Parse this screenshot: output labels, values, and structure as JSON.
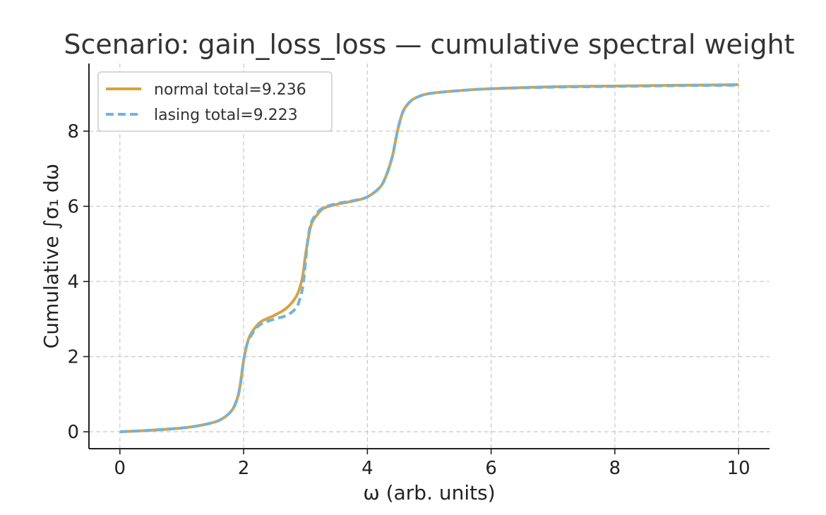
{
  "chart_data": {
    "type": "line",
    "title": "Scenario: gain_loss_loss — cumulative spectral weight",
    "xlabel": "ω (arb. units)",
    "ylabel": "Cumulative ∫σ₁ dω",
    "xlim": [
      -0.5,
      10.5
    ],
    "ylim": [
      -0.45,
      9.8
    ],
    "xticks": [
      0,
      2,
      4,
      6,
      8,
      10
    ],
    "yticks": [
      0,
      2,
      4,
      6,
      8
    ],
    "grid": true,
    "legend_position": "top-left",
    "series": [
      {
        "name": "normal total=9.236",
        "color": "#dba23a",
        "style": "solid",
        "x": [
          0,
          0.5,
          1.0,
          1.3,
          1.6,
          1.8,
          1.9,
          1.95,
          2.0,
          2.05,
          2.1,
          2.2,
          2.3,
          2.5,
          2.7,
          2.85,
          2.92,
          2.96,
          3.0,
          3.05,
          3.1,
          3.2,
          3.3,
          3.5,
          3.8,
          4.0,
          4.2,
          4.3,
          4.4,
          4.45,
          4.5,
          4.55,
          4.6,
          4.7,
          4.8,
          5.0,
          5.5,
          6.0,
          7.0,
          8.0,
          9.0,
          10.0
        ],
        "values": [
          0,
          0.04,
          0.1,
          0.17,
          0.3,
          0.55,
          0.9,
          1.3,
          1.9,
          2.3,
          2.55,
          2.8,
          2.95,
          3.1,
          3.3,
          3.6,
          3.9,
          4.2,
          4.7,
          5.2,
          5.55,
          5.8,
          5.95,
          6.05,
          6.15,
          6.25,
          6.5,
          6.8,
          7.3,
          7.7,
          8.1,
          8.4,
          8.6,
          8.8,
          8.9,
          9.0,
          9.08,
          9.13,
          9.18,
          9.2,
          9.22,
          9.236
        ]
      },
      {
        "name": "lasing total=9.223",
        "color": "#6fb4e0",
        "style": "dashed",
        "x": [
          0,
          0.5,
          1.0,
          1.3,
          1.6,
          1.8,
          1.9,
          1.95,
          2.0,
          2.05,
          2.1,
          2.2,
          2.3,
          2.5,
          2.7,
          2.85,
          2.92,
          2.96,
          3.0,
          3.03,
          3.06,
          3.1,
          3.2,
          3.3,
          3.5,
          3.8,
          4.0,
          4.2,
          4.3,
          4.4,
          4.45,
          4.5,
          4.55,
          4.6,
          4.7,
          4.8,
          5.0,
          5.5,
          6.0,
          7.0,
          8.0,
          9.0,
          10.0
        ],
        "values": [
          0,
          0.04,
          0.1,
          0.17,
          0.3,
          0.55,
          0.9,
          1.3,
          1.9,
          2.3,
          2.5,
          2.75,
          2.88,
          3.0,
          3.1,
          3.3,
          3.6,
          3.9,
          4.5,
          5.0,
          5.35,
          5.6,
          5.85,
          5.97,
          6.07,
          6.16,
          6.25,
          6.5,
          6.8,
          7.3,
          7.7,
          8.1,
          8.4,
          8.6,
          8.8,
          8.9,
          9.0,
          9.08,
          9.13,
          9.17,
          9.19,
          9.21,
          9.223
        ]
      }
    ]
  }
}
